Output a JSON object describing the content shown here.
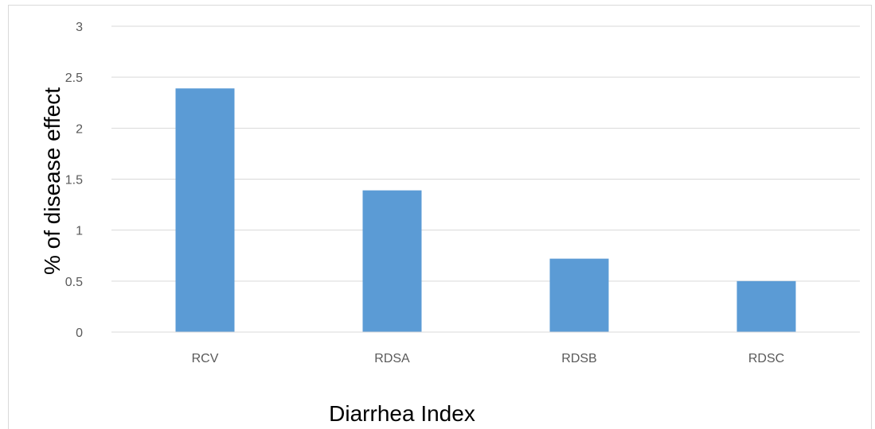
{
  "chart_data": {
    "type": "bar",
    "categories": [
      "RCV",
      "RDSA",
      "RDSB",
      "RDSC"
    ],
    "values": [
      2.39,
      1.39,
      0.72,
      0.5
    ],
    "xlabel": "Diarrhea Index",
    "ylabel": "% of disease effect",
    "ylim": [
      0,
      3
    ],
    "yticks": [
      "0",
      "0.5",
      "1",
      "1.5",
      "2",
      "2.5",
      "3"
    ],
    "grid": true,
    "legend": "none",
    "bar_color": "#5b9bd5",
    "grid_color": "#d9d9d9"
  }
}
